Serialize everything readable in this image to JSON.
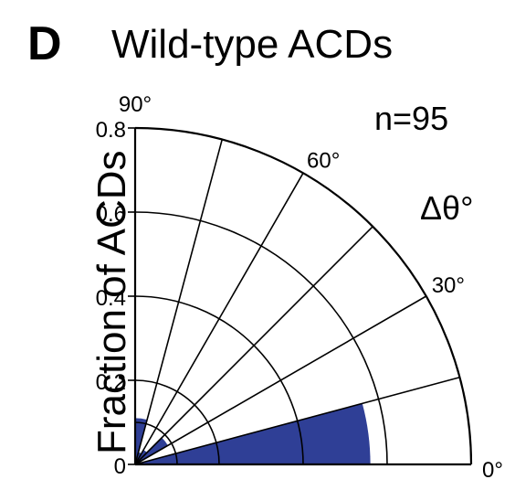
{
  "panel_label": "D",
  "colors": {
    "bar": "#2f3f96",
    "line": "#000000"
  },
  "chart_data": {
    "type": "polar-bar",
    "title": "Wild-type ACDs",
    "ylabel": "Fraction of ACDs",
    "annotation": "n=95",
    "theta_label": "Δθ°",
    "theta_range": [
      0,
      90
    ],
    "r_range": [
      0,
      0.8
    ],
    "r_ticks": [
      "0",
      "0.2",
      "0.4",
      "0.6",
      "0.8"
    ],
    "angle_ticks": [
      "0°",
      "30°",
      "60°",
      "90°"
    ],
    "bins": [
      {
        "theta_start": 0,
        "theta_end": 15,
        "value": 0.56
      },
      {
        "theta_start": 15,
        "theta_end": 30,
        "value": 0.0
      },
      {
        "theta_start": 30,
        "theta_end": 45,
        "value": 0.09
      },
      {
        "theta_start": 45,
        "theta_end": 60,
        "value": 0.04
      },
      {
        "theta_start": 60,
        "theta_end": 75,
        "value": 0.03
      },
      {
        "theta_start": 75,
        "theta_end": 90,
        "value": 0.11
      }
    ]
  }
}
